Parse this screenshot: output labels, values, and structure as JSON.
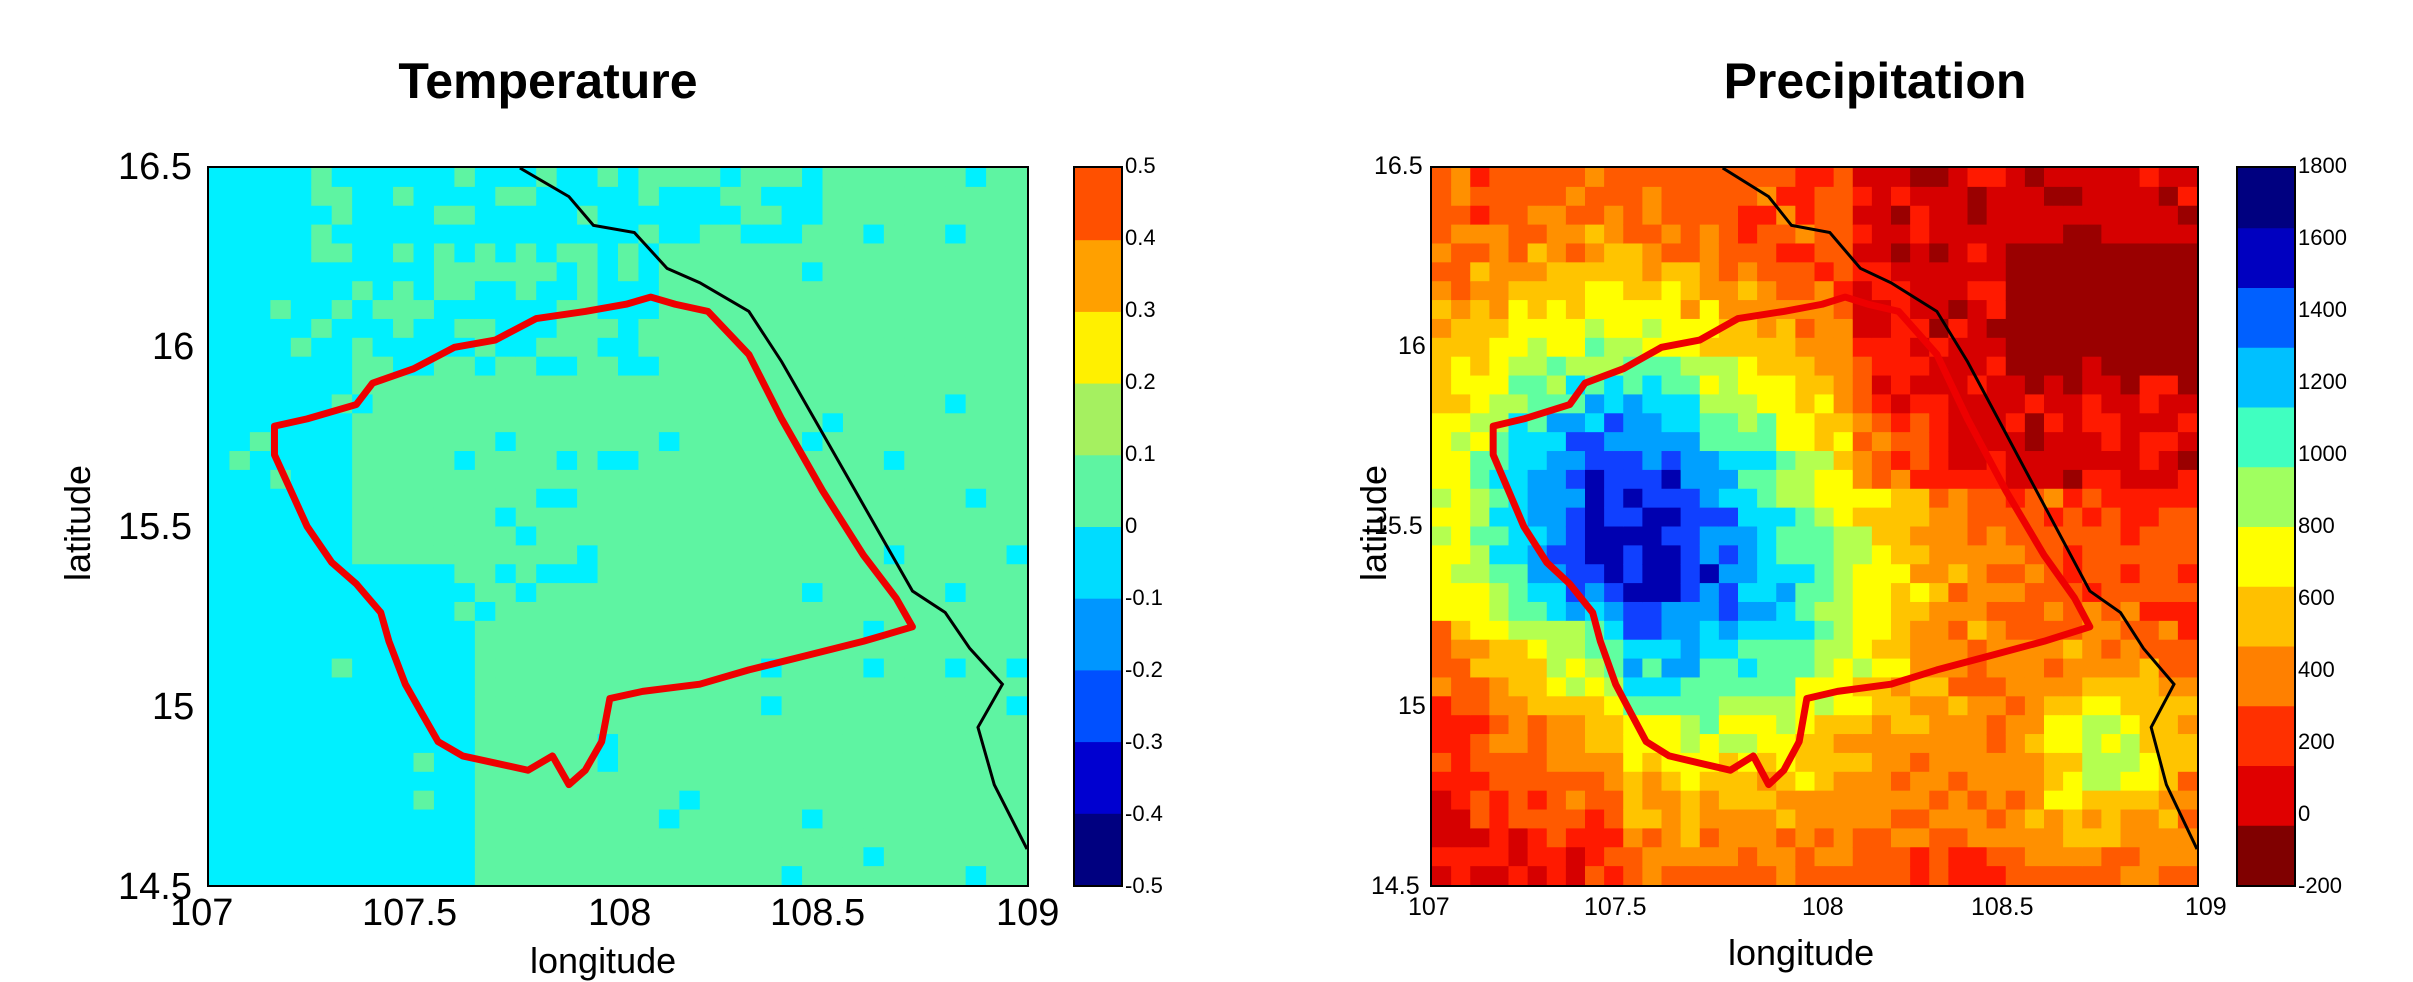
{
  "chart_data": [
    {
      "type": "heatmap",
      "title": "Temperature",
      "xlabel": "longitude",
      "ylabel": "latitude",
      "xlim": [
        107,
        109
      ],
      "ylim": [
        14.5,
        16.5
      ],
      "x_ticks": [
        "107",
        "107.5",
        "108",
        "108.5",
        "109"
      ],
      "y_ticks": [
        "14.5",
        "15",
        "15.5",
        "16",
        "16.5"
      ],
      "colorbar": {
        "ticks": [
          "0.5",
          "0.4",
          "0.3",
          "0.2",
          "0.1",
          "0",
          "-0.1",
          "-0.2",
          "-0.3",
          "-0.4",
          "-0.5"
        ],
        "range": [
          -0.5,
          0.5
        ],
        "colors": [
          "#000080",
          "#0000d0",
          "#0050ff",
          "#0096ff",
          "#00dcff",
          "#5ef4a2",
          "#a5f060",
          "#fff000",
          "#ffa000",
          "#ff5000"
        ]
      },
      "field": "mostly 0 to 0.1 (green) over land and east; -0.1 to 0 (cyan) west and along the north and southwest; isolated cells near -0.2",
      "overlays": [
        "study area boundary (red)",
        "coastline (black)"
      ]
    },
    {
      "type": "heatmap",
      "title": "Precipitation",
      "xlabel": "longitude",
      "ylabel": "latitude",
      "xlim": [
        107,
        109
      ],
      "ylim": [
        14.5,
        16.5
      ],
      "x_ticks": [
        "107",
        "107.5",
        "108",
        "108.5",
        "109"
      ],
      "y_ticks": [
        "14.5",
        "15",
        "15.5",
        "16",
        "16.5"
      ],
      "colorbar": {
        "ticks": [
          "1800",
          "1600",
          "1400",
          "1200",
          "1000",
          "800",
          "600",
          "400",
          "200",
          "0",
          "-200"
        ],
        "range": [
          -200,
          1800
        ],
        "colors": [
          "#800000",
          "#e00000",
          "#ff3000",
          "#ff8000",
          "#ffc000",
          "#ffff00",
          "#a0ff60",
          "#40ffc0",
          "#00c0ff",
          "#0060ff",
          "#0000c0",
          "#000080"
        ]
      },
      "field": "high values (600-1200) in the west/central mountains inside the boundary; low values (0-300) in the northeast and southwest",
      "overlays": [
        "study area boundary (red)",
        "coastline (black)"
      ]
    }
  ]
}
